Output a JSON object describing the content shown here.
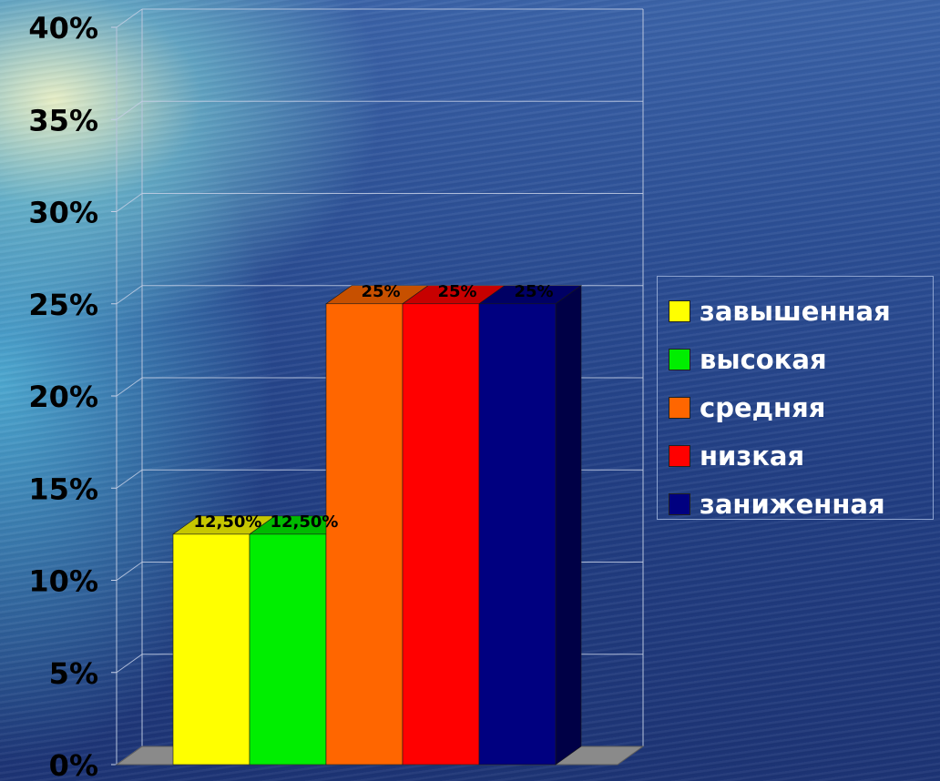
{
  "chart_data": {
    "type": "bar",
    "style": "3d",
    "categories": [
      "завышенная",
      "высокая",
      "средняя",
      "низкая",
      "заниженная"
    ],
    "values": [
      12.5,
      12.5,
      25,
      25,
      25
    ],
    "data_labels": [
      "12,50%",
      "12,50%",
      "25%",
      "25%",
      "25%"
    ],
    "colors": [
      "#ffff00",
      "#00ee00",
      "#ff6600",
      "#ff0000",
      "#000080"
    ],
    "y_ticks": [
      "0%",
      "5%",
      "10%",
      "15%",
      "20%",
      "25%",
      "30%",
      "35%",
      "40%"
    ],
    "ylim": [
      0,
      40
    ],
    "grid": true,
    "legend_position": "right"
  }
}
